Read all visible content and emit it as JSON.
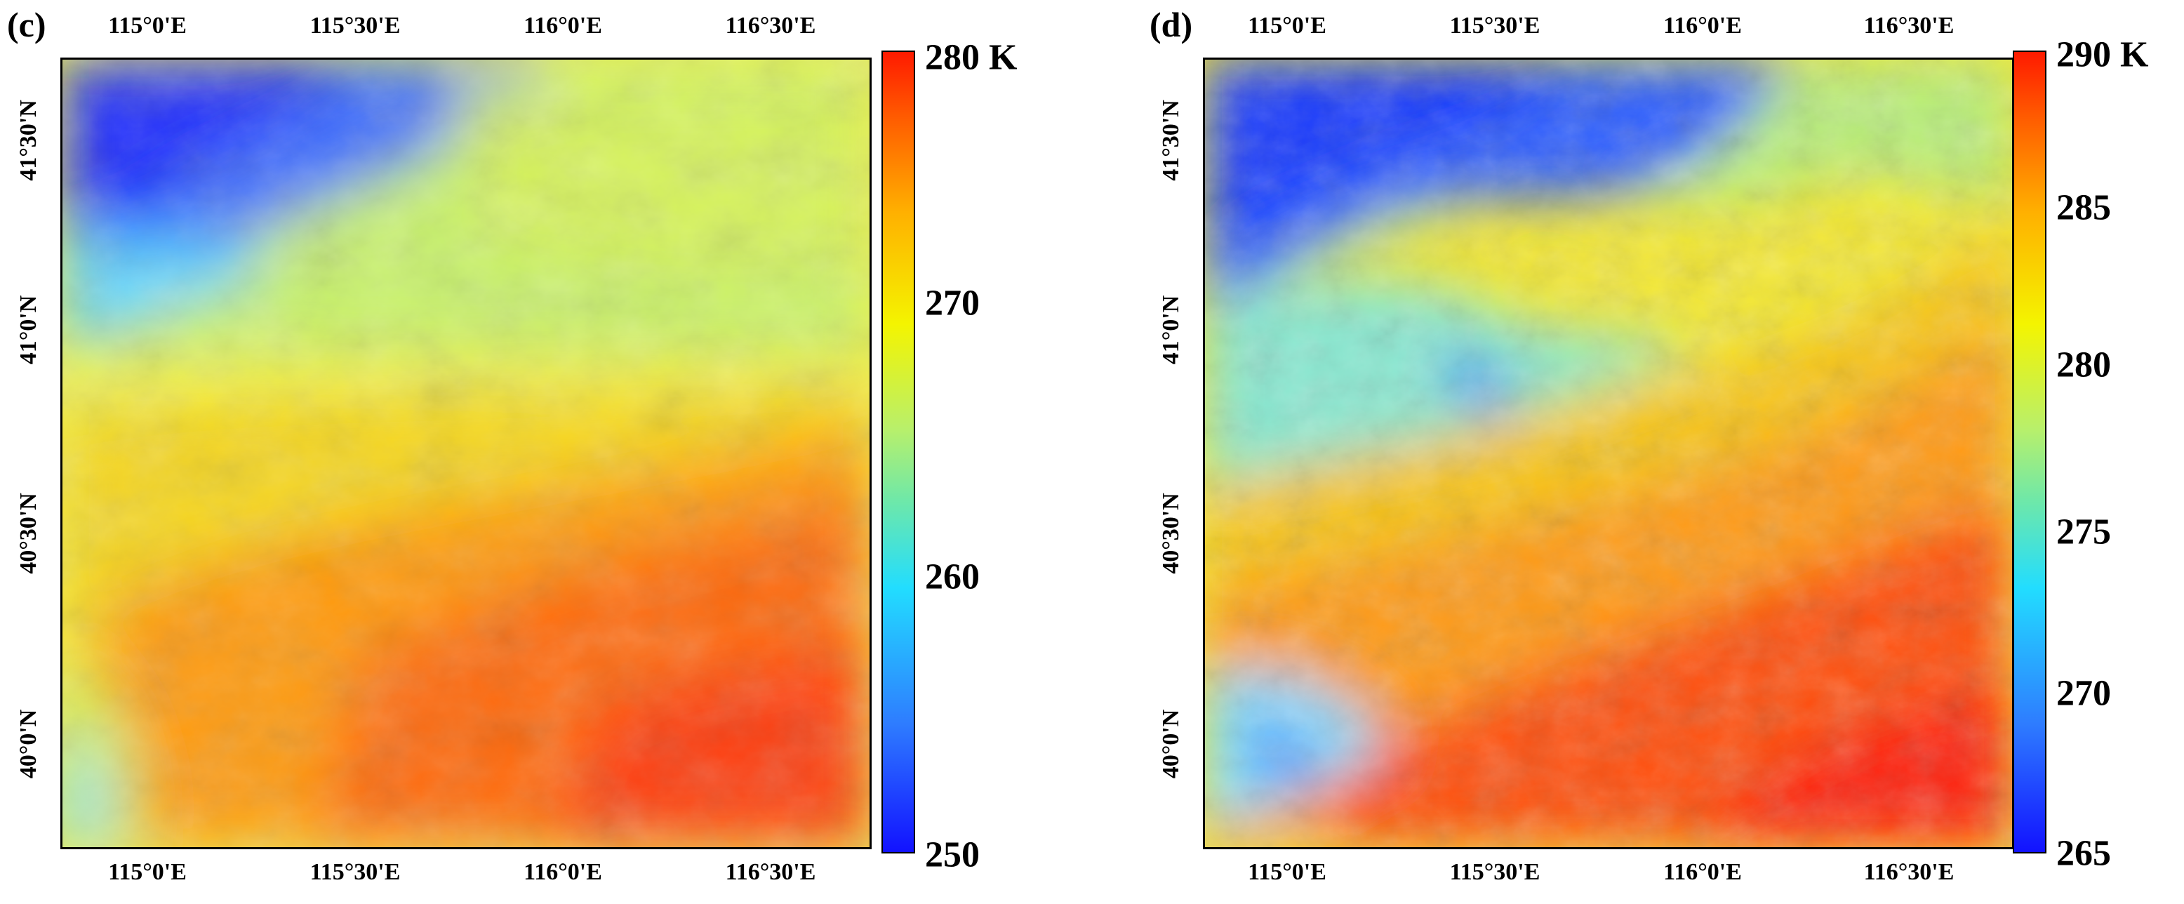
{
  "panels": [
    {
      "label": "(c)",
      "x_ticks": [
        "115°0'E",
        "115°30'E",
        "116°0'E",
        "116°30'E"
      ],
      "y_ticks": [
        "41°30'N",
        "41°0'N",
        "40°30'N",
        "40°0'N"
      ],
      "colorbar": {
        "ticks": [
          "280 K",
          "270",
          "260",
          "250"
        ],
        "min": 250,
        "max": 280,
        "unit": "K"
      }
    },
    {
      "label": "(d)",
      "x_ticks": [
        "115°0'E",
        "115°30'E",
        "116°0'E",
        "116°30'E"
      ],
      "y_ticks": [
        "41°30'N",
        "41°0'N",
        "40°30'N",
        "40°0'N"
      ],
      "colorbar": {
        "ticks": [
          "290 K",
          "285",
          "280",
          "275",
          "270",
          "265"
        ],
        "min": 265,
        "max": 290,
        "unit": "K"
      }
    }
  ],
  "colors": {
    "cold": "#1212ff",
    "cyan": "#22ddff",
    "green": "#6fe8a8",
    "yellow": "#f4f400",
    "orange": "#ffb000",
    "hot": "#ff1a00"
  }
}
